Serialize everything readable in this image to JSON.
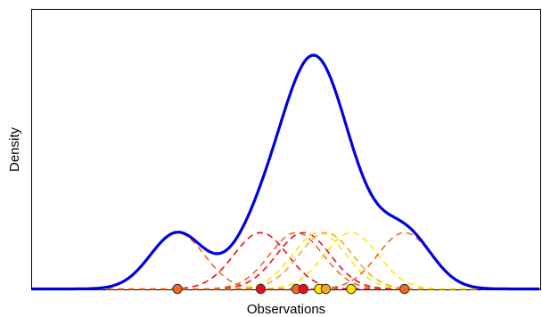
{
  "chart_data": {
    "type": "line",
    "xlabel": "Observations",
    "ylabel": "Density",
    "xlim": [
      0,
      100
    ],
    "ylim": [
      0,
      1.0
    ],
    "grid": false,
    "legend": "none",
    "bandwidth": 5.3,
    "observations": [
      {
        "x": 28.6,
        "color": "#f26522"
      },
      {
        "x": 45.0,
        "color": "#e8101a"
      },
      {
        "x": 52.0,
        "color": "#f26522"
      },
      {
        "x": 53.4,
        "color": "#e8101a"
      },
      {
        "x": 56.5,
        "color": "#ffe600"
      },
      {
        "x": 57.8,
        "color": "#f5a623"
      },
      {
        "x": 62.8,
        "color": "#ffe600"
      },
      {
        "x": 73.3,
        "color": "#f26522"
      }
    ],
    "series": [
      {
        "kind": "kde-total",
        "color": "#0000dd"
      },
      {
        "kind": "kernels",
        "style": "dashed"
      }
    ]
  }
}
